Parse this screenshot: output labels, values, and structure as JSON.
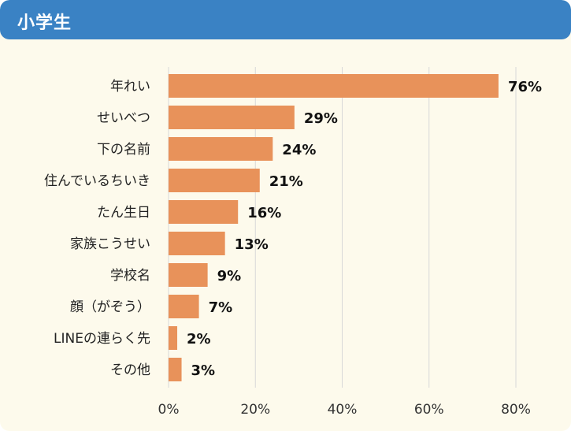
{
  "header": {
    "title": "小学生"
  },
  "chart_data": {
    "type": "bar",
    "orientation": "horizontal",
    "categories": [
      "年れい",
      "せいべつ",
      "下の名前",
      "住んでいるちいき",
      "たん生日",
      "家族こうせい",
      "学校名",
      "顔（がぞう）",
      "LINEの連らく先",
      "その他"
    ],
    "values": [
      76,
      29,
      24,
      21,
      16,
      13,
      9,
      7,
      2,
      3
    ],
    "value_labels": [
      "76%",
      "29%",
      "24%",
      "21%",
      "16%",
      "13%",
      "9%",
      "7%",
      "2%",
      "3%"
    ],
    "x_ticks": [
      0,
      20,
      40,
      60,
      80
    ],
    "x_tick_labels": [
      "0%",
      "20%",
      "40%",
      "60%",
      "80%"
    ],
    "xlim": [
      0,
      80
    ],
    "grid": "vertical",
    "bar_color": "#e8925a",
    "grid_color": "#d8d8d8"
  }
}
